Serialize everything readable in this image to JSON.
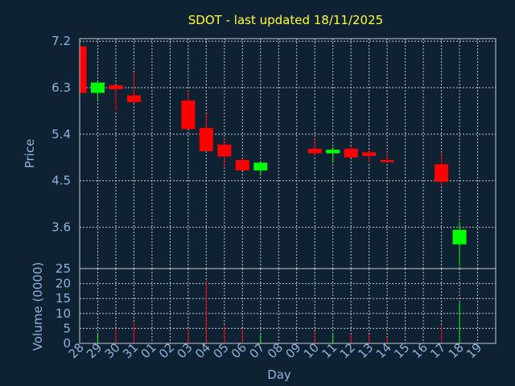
{
  "colors": {
    "background": "#0f2233",
    "title": "#ffff33",
    "axis_text": "#8fb3dc",
    "grid": "#c8c8c8",
    "up": "#00ff00",
    "down": "#ff0000"
  },
  "chart_data": {
    "type": "candlestick",
    "title": "SDOT - last updated 18/11/2025",
    "xlabel": "Day",
    "price_panel": {
      "ylabel": "Price",
      "ylim": [
        2.8,
        7.25
      ],
      "yticks": [
        "7.2",
        "6.3",
        "5.4",
        "4.5",
        "3.6"
      ],
      "ytick_values": [
        7.2,
        6.3,
        5.4,
        4.5,
        3.6
      ],
      "grid": true
    },
    "volume_panel": {
      "ylabel": "Volume (0000)",
      "ylim": [
        0,
        25
      ],
      "yticks": [
        "25",
        "20",
        "15",
        "10",
        "5",
        "0"
      ],
      "ytick_values": [
        25,
        20,
        15,
        10,
        5,
        0
      ],
      "grid": true
    },
    "x_labels": [
      "28",
      "29",
      "30",
      "31",
      "01",
      "02",
      "03",
      "04",
      "05",
      "06",
      "07",
      "08",
      "09",
      "10",
      "11",
      "12",
      "13",
      "14",
      "15",
      "16",
      "17",
      "18",
      "19"
    ],
    "candles": [
      {
        "day": "28",
        "open": 7.1,
        "high": 7.2,
        "low": 6.2,
        "close": 6.2,
        "volume": 0
      },
      {
        "day": "29",
        "open": 6.2,
        "high": 6.4,
        "low": 6.05,
        "close": 6.4,
        "volume": 3
      },
      {
        "day": "30",
        "open": 6.35,
        "high": 6.35,
        "low": 5.85,
        "close": 6.27,
        "volume": 5
      },
      {
        "day": "31",
        "open": 6.15,
        "high": 6.6,
        "low": 6.0,
        "close": 6.02,
        "volume": 7
      },
      {
        "day": "03",
        "open": 6.05,
        "high": 6.25,
        "low": 5.5,
        "close": 5.5,
        "volume": 5
      },
      {
        "day": "04",
        "open": 5.52,
        "high": 5.8,
        "low": 5.07,
        "close": 5.07,
        "volume": 21
      },
      {
        "day": "05",
        "open": 5.2,
        "high": 5.3,
        "low": 4.77,
        "close": 4.97,
        "volume": 6
      },
      {
        "day": "06",
        "open": 4.9,
        "high": 4.93,
        "low": 4.7,
        "close": 4.7,
        "volume": 5
      },
      {
        "day": "07",
        "open": 4.7,
        "high": 4.85,
        "low": 4.6,
        "close": 4.85,
        "volume": 3
      },
      {
        "day": "10",
        "open": 5.12,
        "high": 5.3,
        "low": 4.98,
        "close": 5.03,
        "volume": 4
      },
      {
        "day": "11",
        "open": 5.03,
        "high": 5.15,
        "low": 4.85,
        "close": 5.1,
        "volume": 3
      },
      {
        "day": "12",
        "open": 5.12,
        "high": 5.17,
        "low": 4.95,
        "close": 4.95,
        "volume": 3
      },
      {
        "day": "13",
        "open": 5.05,
        "high": 5.1,
        "low": 4.85,
        "close": 4.98,
        "volume": 3
      },
      {
        "day": "14",
        "open": 4.9,
        "high": 5.05,
        "low": 4.85,
        "close": 4.86,
        "volume": 2
      },
      {
        "day": "17",
        "open": 4.82,
        "high": 5.05,
        "low": 4.4,
        "close": 4.48,
        "volume": 6
      },
      {
        "day": "18",
        "open": 3.27,
        "high": 3.7,
        "low": 2.85,
        "close": 3.55,
        "volume": 14
      }
    ]
  }
}
